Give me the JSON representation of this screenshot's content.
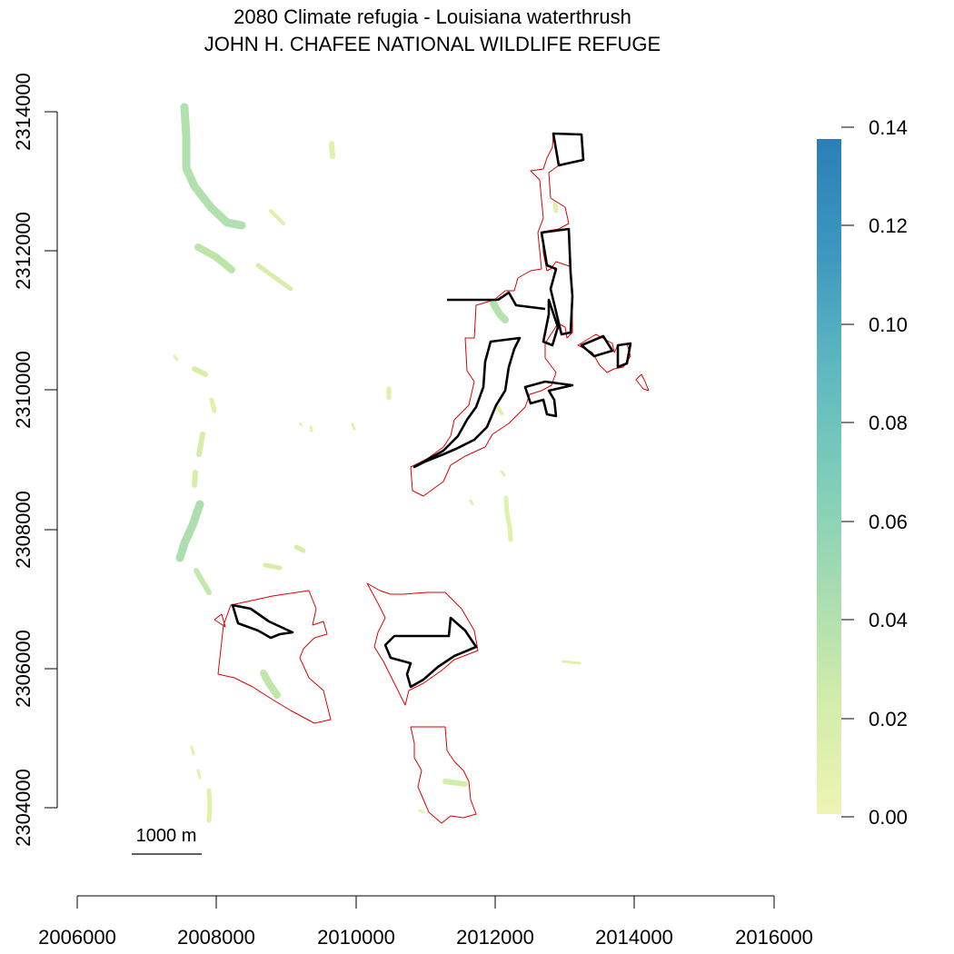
{
  "title": {
    "line1": "2080 Climate refugia - Louisiana waterthrush",
    "line2": "JOHN H. CHAFEE NATIONAL WILDLIFE REFUGE"
  },
  "x_axis": {
    "ticks": [
      "2006000",
      "2008000",
      "2010000",
      "2012000",
      "2014000",
      "2016000"
    ]
  },
  "y_axis": {
    "ticks": [
      "2304000",
      "2306000",
      "2308000",
      "2310000",
      "2312000",
      "2314000"
    ]
  },
  "colorbar": {
    "ticks": [
      "0.00",
      "0.02",
      "0.04",
      "0.06",
      "0.08",
      "0.10",
      "0.12",
      "0.14"
    ],
    "colors": [
      "#eef4b4",
      "#d2edaa",
      "#a7dcb0",
      "#7ccdb9",
      "#5db7c0",
      "#3d97bf",
      "#2a7fb8"
    ]
  },
  "scale_bar": {
    "label": "1000 m"
  },
  "colors": {
    "refuge_outline": "#dd0000",
    "refuge_core": "#000000"
  }
}
